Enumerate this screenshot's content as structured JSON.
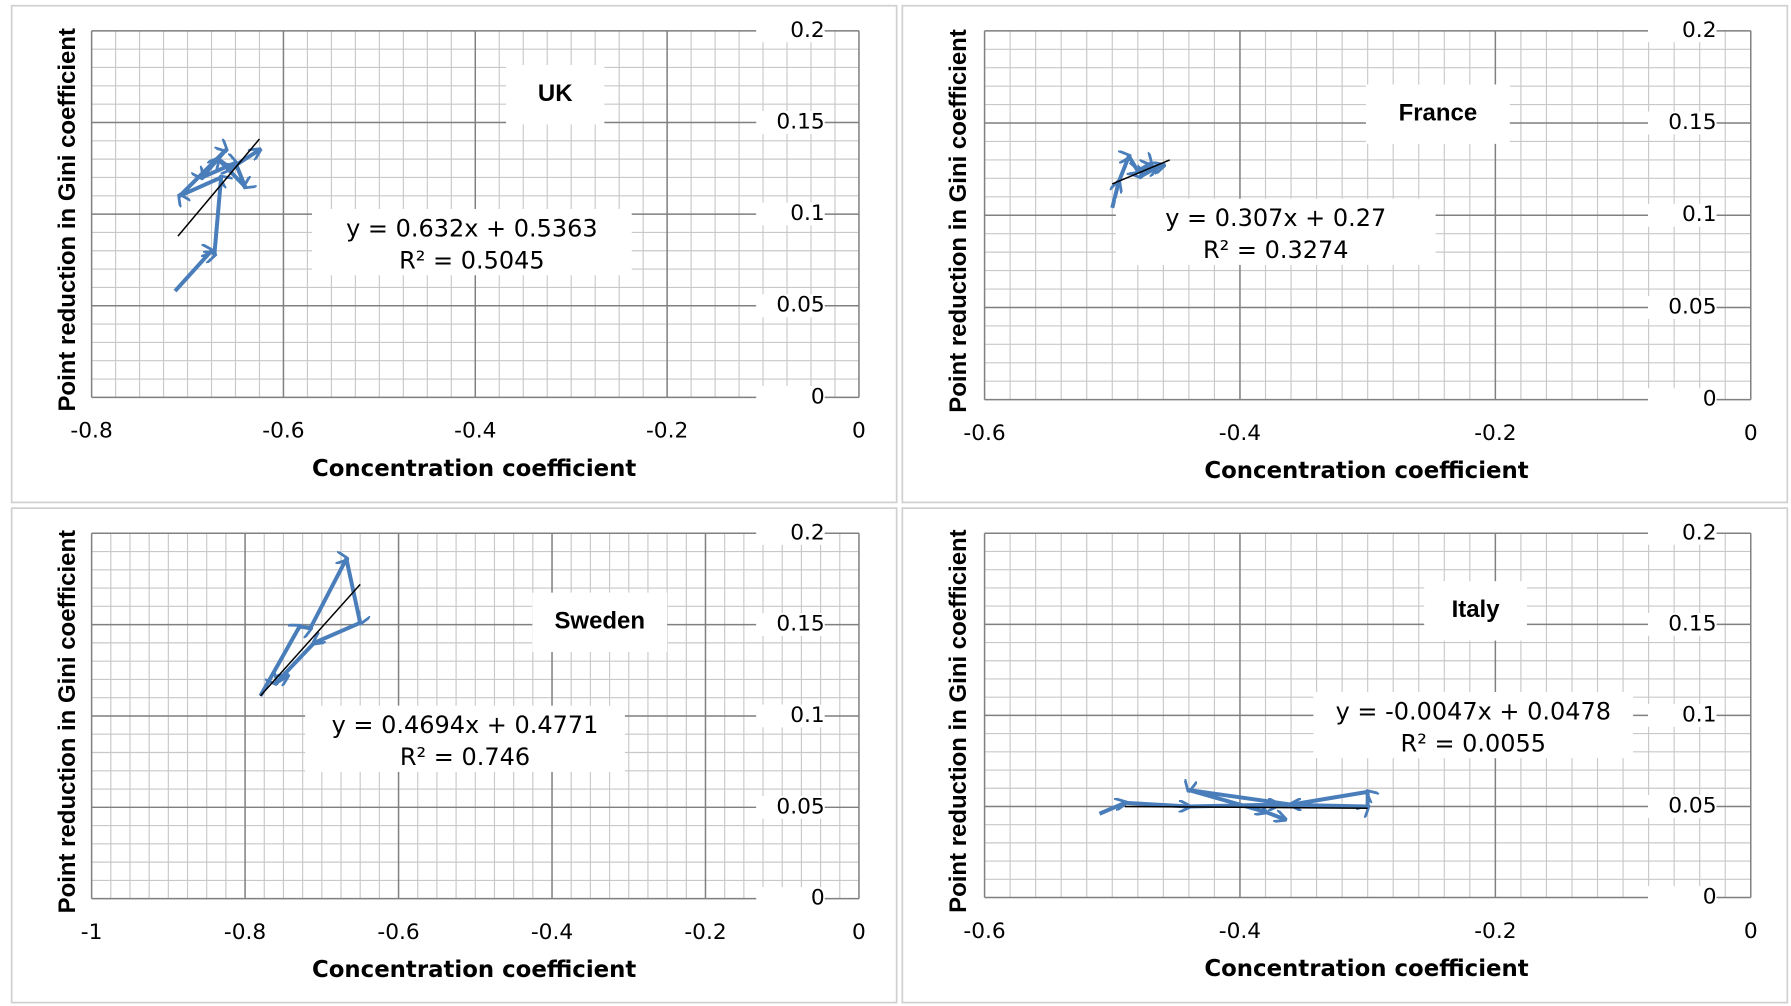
{
  "chart_data": [
    {
      "type": "line",
      "title": "UK",
      "equation": "y = 0.632x + 0.5363",
      "r_squared": "R² = 0.5045",
      "x_label": "Concentration coefficient",
      "y_label": "Point reduction in Gini coefficient",
      "x": [
        -0.713,
        -0.675,
        -0.672,
        -0.665,
        -0.708,
        -0.66,
        -0.685,
        -0.65,
        -0.64,
        -0.668,
        -0.655,
        -0.625
      ],
      "values": [
        0.058,
        0.08,
        0.078,
        0.12,
        0.11,
        0.135,
        0.12,
        0.128,
        0.115,
        0.13,
        0.125,
        0.135
      ],
      "color": "#4a7ebb",
      "trendline": {
        "x": [
          -0.71,
          -0.625
        ],
        "y": [
          0.088,
          0.141
        ],
        "color": "#000000"
      },
      "xlim": [
        -0.8,
        0
      ],
      "xticks": [
        -0.8,
        -0.6,
        -0.4,
        -0.2,
        0
      ],
      "x_minor": 0.025,
      "ylim": [
        0,
        0.2
      ],
      "yticks": [
        0,
        0.05,
        0.1,
        0.15,
        0.2
      ],
      "y_minor": 0.01,
      "grid": true
    },
    {
      "type": "line",
      "title": "France",
      "equation": "y = 0.307x + 0.27",
      "r_squared": "R² = 0.3274",
      "x_label": "Concentration coefficient",
      "y_label": "Point reduction in Gini coefficient",
      "x": [
        -0.5,
        -0.495,
        -0.487,
        -0.48,
        -0.47,
        -0.478,
        -0.465,
        -0.46
      ],
      "values": [
        0.104,
        0.118,
        0.132,
        0.124,
        0.128,
        0.121,
        0.126,
        0.127
      ],
      "color": "#4a7ebb",
      "trendline": {
        "x": [
          -0.5,
          -0.455
        ],
        "y": [
          0.117,
          0.13
        ],
        "color": "#000000"
      },
      "xlim": [
        -0.6,
        0
      ],
      "xticks": [
        -0.6,
        -0.4,
        -0.2,
        0
      ],
      "x_minor": 0.02,
      "ylim": [
        0,
        0.2
      ],
      "yticks": [
        0,
        0.05,
        0.1,
        0.15,
        0.2
      ],
      "y_minor": 0.01,
      "grid": true
    },
    {
      "type": "line",
      "title": "Sweden",
      "equation": "y = 0.4694x + 0.4771",
      "r_squared": "R² = 0.746",
      "x_label": "Concentration coefficient",
      "y_label": "Point reduction in Gini coefficient",
      "x": [
        -0.78,
        -0.729,
        -0.715,
        -0.668,
        -0.65,
        -0.71,
        -0.76,
        -0.745
      ],
      "values": [
        0.111,
        0.149,
        0.148,
        0.186,
        0.151,
        0.14,
        0.118,
        0.122
      ],
      "color": "#4a7ebb",
      "trendline": {
        "x": [
          -0.78,
          -0.65
        ],
        "y": [
          0.111,
          0.172
        ],
        "color": "#000000"
      },
      "xlim": [
        -1,
        0
      ],
      "xticks": [
        -1,
        -0.8,
        -0.6,
        -0.4,
        -0.2,
        0
      ],
      "x_minor": 0.025,
      "ylim": [
        0,
        0.2
      ],
      "yticks": [
        0,
        0.05,
        0.1,
        0.15,
        0.2
      ],
      "y_minor": 0.01,
      "grid": true
    },
    {
      "type": "line",
      "title": "Italy",
      "equation": "y = -0.0047x + 0.0478",
      "r_squared": "R² = 0.0055",
      "x_label": "Concentration coefficient",
      "y_label": "Point reduction in Gini coefficient",
      "x": [
        -0.51,
        -0.49,
        -0.44,
        -0.37,
        -0.3,
        -0.3,
        -0.36,
        -0.44,
        -0.38,
        -0.365
      ],
      "values": [
        0.046,
        0.052,
        0.05,
        0.051,
        0.05,
        0.058,
        0.051,
        0.059,
        0.047,
        0.043
      ],
      "color": "#4a7ebb",
      "trendline": {
        "x": [
          -0.49,
          -0.3
        ],
        "y": [
          0.05,
          0.049
        ],
        "color": "#000000"
      },
      "xlim": [
        -0.6,
        0
      ],
      "xticks": [
        -0.6,
        -0.4,
        -0.2,
        0
      ],
      "x_minor": 0.02,
      "ylim": [
        0,
        0.2
      ],
      "yticks": [
        0,
        0.05,
        0.1,
        0.15,
        0.2
      ],
      "y_minor": 0.01,
      "grid": true
    }
  ]
}
